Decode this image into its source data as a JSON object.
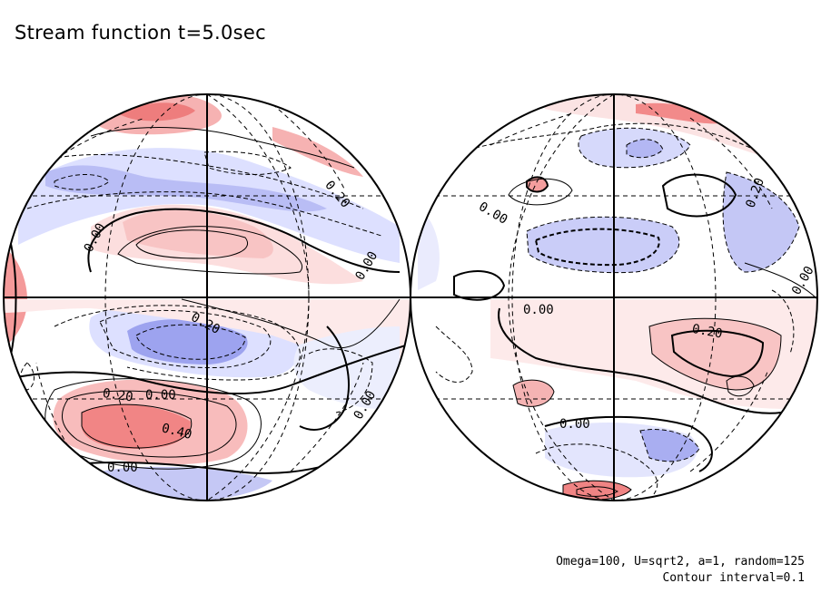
{
  "title": "Stream function t=5.0sec",
  "notes": {
    "params": "Omega=100, U=sqrt2, a=1, random=125",
    "interval": "Contour interval=0.1"
  },
  "chart_data": {
    "type": "contour",
    "field": "stream function",
    "contour_interval": 0.1,
    "colors": {
      "positive": "#f08080",
      "negative": "#8080f0",
      "zero_line": "#000000"
    },
    "panels": [
      {
        "name": "left-hemisphere",
        "labels": [
          "0.00",
          "0.20",
          "0.00",
          "0.20",
          "0.20",
          "0.00",
          "0.00",
          "0.40",
          "0.00"
        ]
      },
      {
        "name": "right-hemisphere",
        "labels": [
          "0.00",
          "0.20",
          "0.00",
          "0.20",
          "0.00",
          "0.00"
        ]
      }
    ]
  }
}
